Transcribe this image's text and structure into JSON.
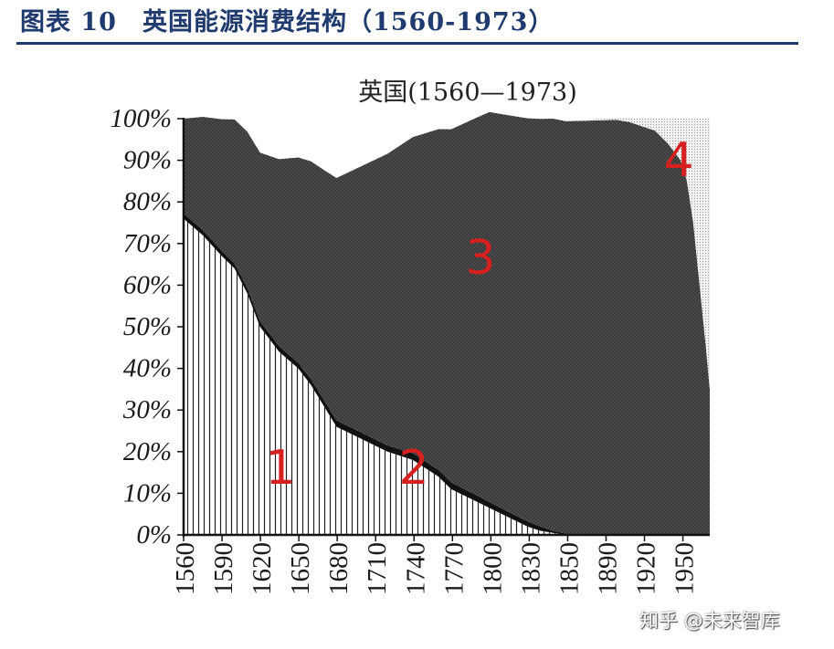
{
  "figure_title": "图表 10　英国能源消费结构（1560-1973）",
  "chart_data": {
    "type": "area",
    "title": "英国(1560—1973)",
    "stacked_percent": true,
    "x_tick_labels": [
      "1560",
      "1590",
      "1620",
      "1650",
      "1680",
      "1710",
      "1740",
      "1770",
      "1800",
      "1830",
      "1850",
      "1890",
      "1920",
      "1950"
    ],
    "ylim": [
      0,
      100
    ],
    "y_tick_labels": [
      "0%",
      "10%",
      "20%",
      "30%",
      "40%",
      "50%",
      "60%",
      "70%",
      "80%",
      "90%",
      "100%"
    ],
    "series": [
      {
        "name": "1",
        "x": [
          1560,
          1575,
          1590,
          1600,
          1610,
          1620,
          1635,
          1650,
          1660,
          1670,
          1680,
          1700,
          1720,
          1740,
          1750,
          1760,
          1770,
          1790,
          1810,
          1830,
          1840,
          1850,
          1860,
          1973
        ],
        "values": [
          76,
          72,
          67,
          64,
          58,
          50,
          44,
          40,
          36,
          31,
          26,
          23,
          20,
          18,
          16,
          14,
          11,
          8,
          5,
          2,
          1,
          0.5,
          0,
          0
        ]
      },
      {
        "name": "2",
        "x": [
          1560,
          1575,
          1590,
          1600,
          1610,
          1620,
          1635,
          1650,
          1660,
          1670,
          1680,
          1700,
          1720,
          1740,
          1750,
          1760,
          1770,
          1790,
          1810,
          1830,
          1840,
          1850,
          1860,
          1973
        ],
        "values": [
          1.2,
          1.2,
          1.2,
          1.2,
          1.3,
          1.3,
          1.3,
          1.3,
          1.4,
          1.4,
          1.5,
          1.5,
          1.5,
          1.6,
          1.6,
          1.6,
          1.6,
          1.5,
          1.3,
          1.2,
          1.0,
          0.5,
          0.3,
          0
        ]
      },
      {
        "name": "3",
        "x": [
          1560,
          1800,
          1850,
          1900,
          1910,
          1920,
          1930,
          1940,
          1950,
          1955,
          1960,
          1965,
          1970,
          1973
        ],
        "values": [
          22.8,
          93.7,
          99,
          99.5,
          99,
          98,
          97,
          94,
          90,
          85,
          75,
          60,
          45,
          35
        ]
      },
      {
        "name": "4",
        "x": [
          1560,
          1800,
          1850,
          1900,
          1910,
          1920,
          1930,
          1940,
          1950,
          1955,
          1960,
          1965,
          1970,
          1973
        ],
        "values": [
          0,
          0,
          0,
          0.5,
          1,
          2,
          3,
          6,
          10,
          15,
          25,
          40,
          55,
          65
        ]
      }
    ],
    "colors": {
      "series1_stripe": "#222222",
      "series2": "#111111",
      "series3": "#3a3a3a",
      "series4": "#d6d6d6",
      "annotation": "#d62020"
    }
  },
  "watermark": "知乎 @未来智库"
}
